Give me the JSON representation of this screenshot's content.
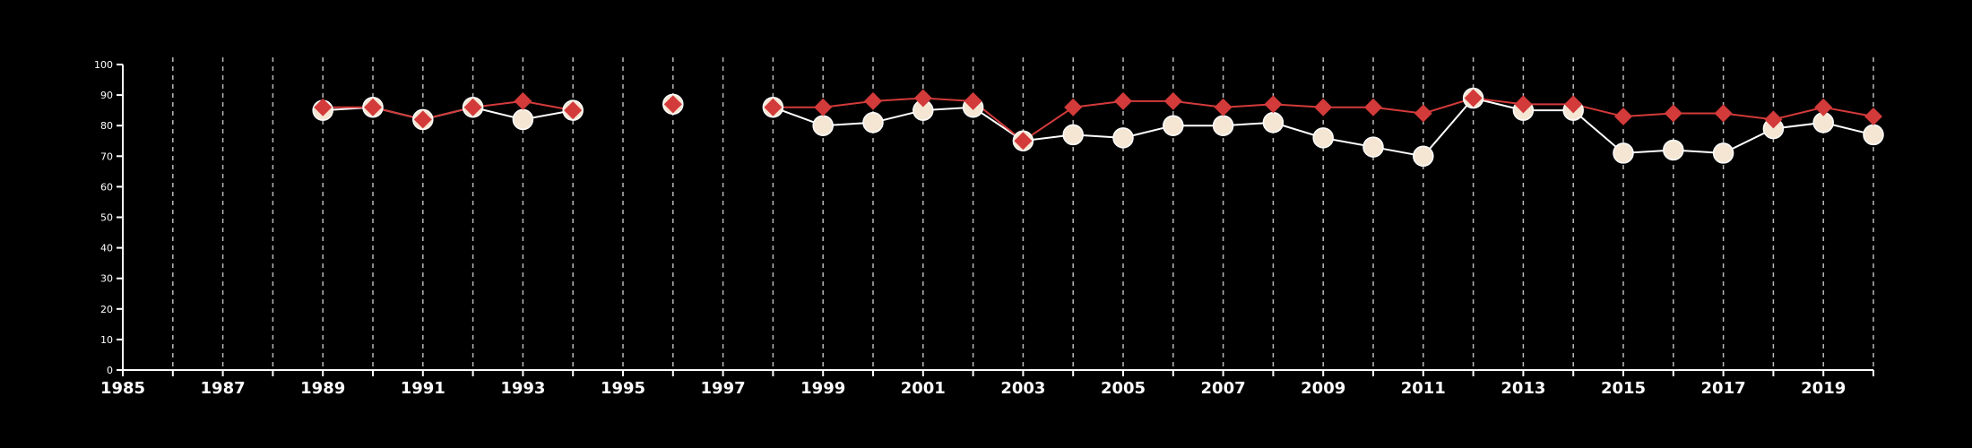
{
  "chart_data": {
    "type": "line",
    "title": "",
    "xlabel": "",
    "ylabel": "",
    "xlim": [
      1985,
      2020
    ],
    "ylim": [
      0,
      100
    ],
    "y_ticks": [
      0,
      10,
      20,
      30,
      40,
      50,
      60,
      70,
      80,
      90,
      100
    ],
    "x_tick_labels": [
      "1985",
      "1987",
      "1989",
      "1991",
      "1993",
      "1995",
      "1997",
      "1999",
      "2001",
      "2003",
      "2005",
      "2007",
      "2009",
      "2011",
      "2013",
      "2015",
      "2017",
      "2019"
    ],
    "x_gridlines": "every year, dashed",
    "legend": "none",
    "background_color": "#000000",
    "series": [
      {
        "marker": "circle",
        "color": "#f5e6d3",
        "line_color": "#ffffff",
        "points": [
          [
            1989,
            85
          ],
          [
            1990,
            86
          ],
          [
            1991,
            82
          ],
          [
            1992,
            86
          ],
          [
            1993,
            82
          ],
          [
            1994,
            85
          ],
          [
            1996,
            87
          ],
          [
            1998,
            86
          ],
          [
            1999,
            80
          ],
          [
            2000,
            81
          ],
          [
            2001,
            85
          ],
          [
            2002,
            86
          ],
          [
            2003,
            75
          ],
          [
            2004,
            77
          ],
          [
            2005,
            76
          ],
          [
            2006,
            80
          ],
          [
            2007,
            80
          ],
          [
            2008,
            81
          ],
          [
            2009,
            76
          ],
          [
            2010,
            73
          ],
          [
            2011,
            70
          ],
          [
            2012,
            89
          ],
          [
            2013,
            85
          ],
          [
            2014,
            85
          ],
          [
            2015,
            71
          ],
          [
            2016,
            72
          ],
          [
            2017,
            71
          ],
          [
            2018,
            79
          ],
          [
            2019,
            81
          ],
          [
            2020,
            77
          ]
        ]
      },
      {
        "marker": "diamond",
        "color": "#d33a3a",
        "line_color": "#d33a3a",
        "points": [
          [
            1989,
            86
          ],
          [
            1990,
            86
          ],
          [
            1991,
            82
          ],
          [
            1992,
            86
          ],
          [
            1993,
            88
          ],
          [
            1994,
            85
          ],
          [
            1996,
            87
          ],
          [
            1998,
            86
          ],
          [
            1999,
            86
          ],
          [
            2000,
            88
          ],
          [
            2001,
            89
          ],
          [
            2002,
            88
          ],
          [
            2003,
            75
          ],
          [
            2004,
            86
          ],
          [
            2005,
            88
          ],
          [
            2006,
            88
          ],
          [
            2007,
            86
          ],
          [
            2008,
            87
          ],
          [
            2009,
            86
          ],
          [
            2010,
            86
          ],
          [
            2011,
            84
          ],
          [
            2012,
            89
          ],
          [
            2013,
            87
          ],
          [
            2014,
            87
          ],
          [
            2015,
            83
          ],
          [
            2016,
            84
          ],
          [
            2017,
            84
          ],
          [
            2018,
            82
          ],
          [
            2019,
            86
          ],
          [
            2020,
            83
          ]
        ]
      }
    ]
  }
}
